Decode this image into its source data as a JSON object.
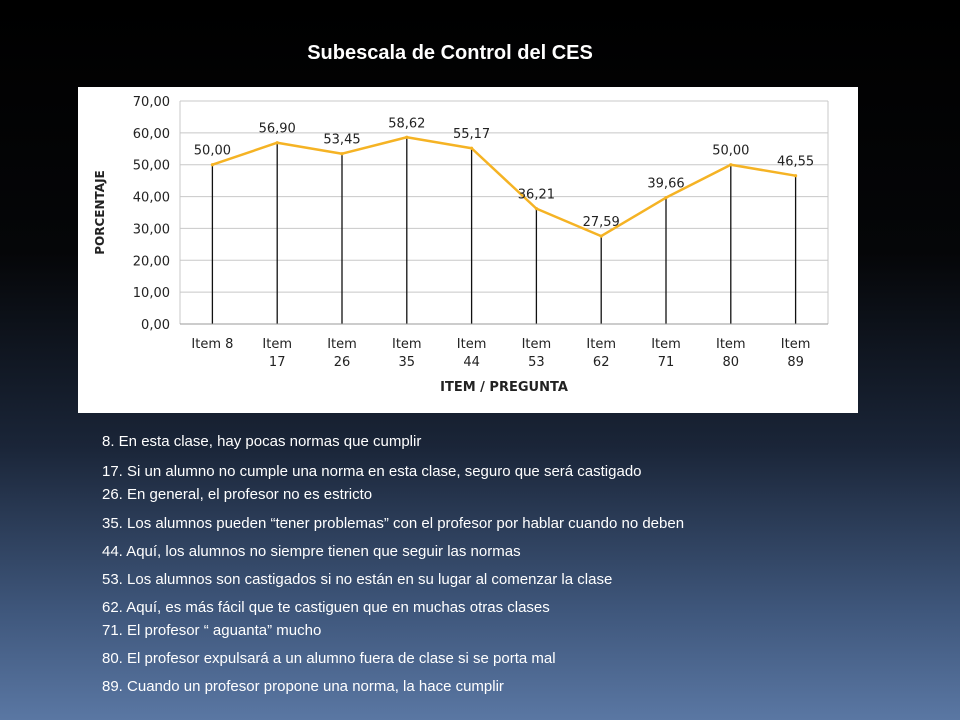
{
  "title": "Subescala de Control del CES",
  "chart_data": {
    "type": "line",
    "categories": [
      "Item 8",
      "Item 17",
      "Item 26",
      "Item 35",
      "Item 44",
      "Item 53",
      "Item 62",
      "Item 71",
      "Item 80",
      "Item 89"
    ],
    "series": [
      {
        "values": [
          50.0,
          56.9,
          53.45,
          58.62,
          55.17,
          36.21,
          27.59,
          39.66,
          50.0,
          46.55
        ],
        "color": "#f5b324"
      }
    ],
    "value_labels": [
      "50,00",
      "56,90",
      "53,45",
      "58,62",
      "55,17",
      "36,21",
      "27,59",
      "39,66",
      "50,00",
      "46,55"
    ],
    "y_ticks": [
      "0,00",
      "10,00",
      "20,00",
      "30,00",
      "40,00",
      "50,00",
      "60,00",
      "70,00"
    ],
    "ylim": [
      0,
      70
    ],
    "xlabel": "ITEM  /  PREGUNTA",
    "ylabel": "PORCENTAJE",
    "grid": true,
    "legend": "none",
    "drop_lines": true
  },
  "items": [
    "8. En esta clase, hay pocas normas que cumplir",
    "17. Si un alumno no cumple una norma en esta clase, seguro que será castigado",
    "26. En general, el profesor no es estricto",
    "35. Los alumnos pueden “tener problemas” con el profesor por hablar cuando no deben",
    "44. Aquí, los alumnos no siempre tienen que seguir las normas",
    "53. Los alumnos son castigados si no están en su lugar al comenzar la clase",
    "62. Aquí, es más fácil que te castiguen que en muchas otras clases",
    "71. El profesor “ aguanta” mucho",
    "80. El profesor expulsará a un alumno fuera de clase si se porta mal",
    "89. Cuando un profesor propone una norma, la hace cumplir"
  ]
}
